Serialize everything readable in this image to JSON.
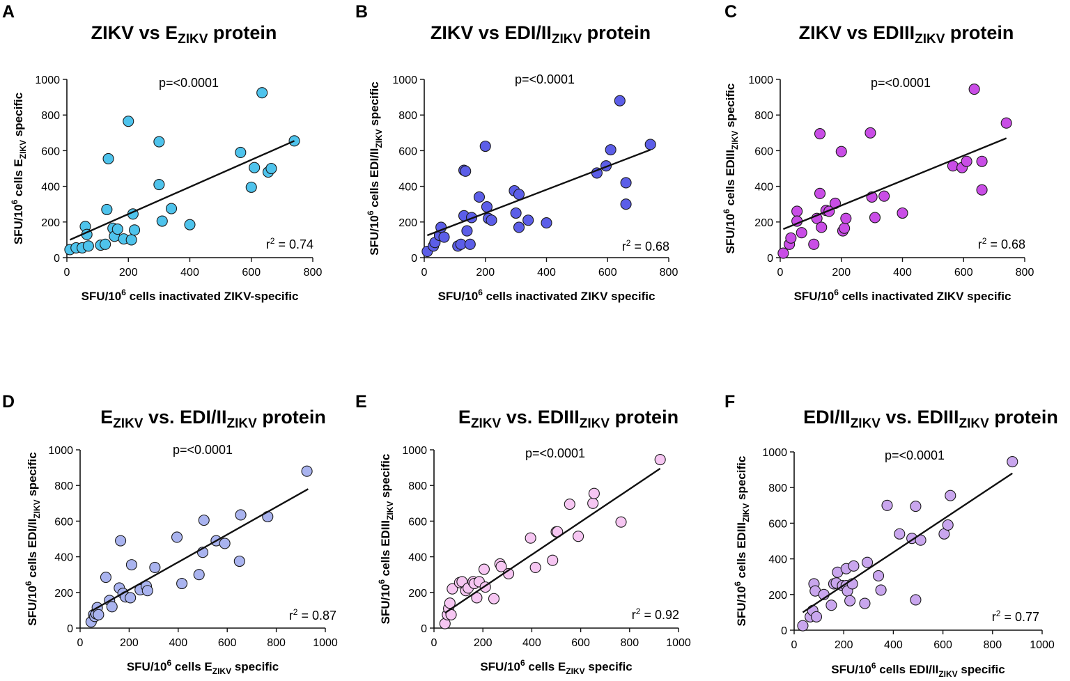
{
  "colors": {
    "text": "#111111",
    "axis": "#111111",
    "regression": "#111111",
    "marker_edge": "#1a1a1a"
  },
  "chart_data": [
    {
      "panel": "A",
      "type": "scatter",
      "title": "ZIKV vs E",
      "title_sub": "ZIKV",
      "title_end": " protein",
      "ylabel_pre": "SFU/10",
      "ylabel_sup": "6",
      "ylabel_mid": " cells E",
      "ylabel_sub": "ZIKV",
      "ylabel_end": " specific",
      "xlabel_pre": "SFU/10",
      "xlabel_sup": "6",
      "xlabel_mid": " cells inactivated ZIKV-specific",
      "xlabel_sub": "",
      "xlabel_end": "",
      "xlim": [
        0,
        800
      ],
      "ylim": [
        0,
        1000
      ],
      "xticks": [
        0,
        200,
        400,
        600,
        800
      ],
      "yticks": [
        0,
        200,
        400,
        600,
        800,
        1000
      ],
      "pvalue": "p=<0.0001",
      "r2_pre": "r",
      "r2_sup": "2",
      "r2_post": " = 0.74",
      "color": "#4ec3ec",
      "line": [
        [
          10,
          100
        ],
        [
          740,
          655
        ]
      ],
      "x": [
        10,
        30,
        50,
        60,
        65,
        70,
        110,
        125,
        130,
        135,
        150,
        155,
        165,
        185,
        200,
        210,
        215,
        220,
        300,
        300,
        310,
        340,
        400,
        565,
        600,
        610,
        655,
        665,
        635,
        740
      ],
      "y": [
        45,
        55,
        55,
        175,
        130,
        65,
        70,
        75,
        270,
        555,
        165,
        120,
        160,
        105,
        765,
        100,
        245,
        155,
        650,
        410,
        205,
        275,
        185,
        590,
        395,
        505,
        480,
        500,
        925,
        655
      ]
    },
    {
      "panel": "B",
      "type": "scatter",
      "title": "ZIKV vs EDI/II",
      "title_sub": "ZIKV",
      "title_end": " protein",
      "ylabel_pre": "SFU/10",
      "ylabel_sup": "6",
      "ylabel_mid": " cells EDI/II",
      "ylabel_sub": "ZIKV",
      "ylabel_end": " specific",
      "xlabel_pre": "SFU/10",
      "xlabel_sup": "6",
      "xlabel_mid": " cells inactivated ZIKV specific",
      "xlabel_sub": "",
      "xlabel_end": "",
      "xlim": [
        0,
        800
      ],
      "ylim": [
        0,
        1000
      ],
      "xticks": [
        0,
        200,
        400,
        600,
        800
      ],
      "yticks": [
        0,
        200,
        400,
        600,
        800,
        1000
      ],
      "pvalue": "p=<0.0001",
      "r2_pre": "r",
      "r2_sup": "2",
      "r2_post": " = 0.68",
      "color": "#5c5ee8",
      "line": [
        [
          10,
          125
        ],
        [
          740,
          605
        ]
      ],
      "x": [
        10,
        30,
        35,
        50,
        55,
        65,
        110,
        120,
        130,
        130,
        135,
        140,
        150,
        155,
        180,
        200,
        205,
        210,
        220,
        295,
        300,
        310,
        310,
        340,
        400,
        565,
        595,
        610,
        640,
        660,
        660,
        740
      ],
      "y": [
        35,
        65,
        85,
        125,
        170,
        115,
        65,
        75,
        235,
        490,
        485,
        150,
        75,
        225,
        340,
        625,
        285,
        220,
        210,
        375,
        250,
        355,
        170,
        210,
        195,
        475,
        515,
        605,
        880,
        300,
        420,
        635
      ]
    },
    {
      "panel": "C",
      "type": "scatter",
      "title": "ZIKV vs EDIII",
      "title_sub": "ZIKV",
      "title_end": " protein",
      "ylabel_pre": "SFU/10",
      "ylabel_sup": "6",
      "ylabel_mid": " cells EDIII",
      "ylabel_sub": "ZIKV",
      "ylabel_end": " specific",
      "xlabel_pre": "SFU/10",
      "xlabel_sup": "6",
      "xlabel_mid": " cells inactivated ZIKV specific",
      "xlabel_sub": "",
      "xlabel_end": "",
      "xlim": [
        0,
        800
      ],
      "ylim": [
        0,
        1000
      ],
      "xticks": [
        0,
        200,
        400,
        600,
        800
      ],
      "yticks": [
        0,
        200,
        400,
        600,
        800,
        1000
      ],
      "pvalue": "p=<0.0001",
      "r2_pre": "r",
      "r2_sup": "2",
      "r2_post": " = 0.68",
      "color": "#c94de6",
      "line": [
        [
          10,
          160
        ],
        [
          740,
          670
        ]
      ],
      "x": [
        10,
        30,
        35,
        55,
        55,
        70,
        110,
        120,
        130,
        130,
        135,
        150,
        160,
        180,
        200,
        205,
        210,
        215,
        295,
        300,
        310,
        340,
        400,
        565,
        595,
        610,
        635,
        660,
        660,
        740
      ],
      "y": [
        25,
        75,
        110,
        260,
        205,
        140,
        75,
        220,
        360,
        695,
        170,
        265,
        260,
        305,
        595,
        150,
        165,
        220,
        700,
        340,
        225,
        345,
        250,
        515,
        505,
        540,
        945,
        380,
        540,
        755
      ]
    },
    {
      "panel": "D",
      "type": "scatter",
      "title": "E",
      "title_sub": "ZIKV",
      "title_end": " vs. EDI/II",
      "title_sub2": "ZIKV",
      "title_end2": " protein",
      "ylabel_pre": "SFU/10",
      "ylabel_sup": "6",
      "ylabel_mid": " cells EDI/II",
      "ylabel_sub": "ZIKV",
      "ylabel_end": " specific",
      "xlabel_pre": "SFU/10",
      "xlabel_sup": "6",
      "xlabel_mid": " cells E",
      "xlabel_sub": "ZIKV",
      "xlabel_end": "  specific",
      "xlim": [
        0,
        1000
      ],
      "ylim": [
        0,
        1000
      ],
      "xticks": [
        0,
        200,
        400,
        600,
        800,
        1000
      ],
      "yticks": [
        0,
        200,
        400,
        600,
        800,
        1000
      ],
      "pvalue": "p=<0.0001",
      "r2_pre": "r",
      "r2_sup": "2",
      "r2_post": " = 0.87",
      "color": "#a9b3ef",
      "line": [
        [
          45,
          95
        ],
        [
          930,
          780
        ]
      ],
      "x": [
        45,
        55,
        60,
        65,
        70,
        75,
        105,
        120,
        130,
        160,
        165,
        175,
        185,
        205,
        210,
        245,
        270,
        275,
        305,
        395,
        415,
        485,
        500,
        505,
        555,
        590,
        650,
        655,
        765,
        925
      ],
      "y": [
        35,
        75,
        65,
        80,
        115,
        75,
        285,
        155,
        120,
        225,
        490,
        195,
        175,
        170,
        355,
        215,
        235,
        210,
        340,
        510,
        250,
        300,
        425,
        605,
        490,
        475,
        375,
        635,
        625,
        880
      ]
    },
    {
      "panel": "E",
      "type": "scatter",
      "title": "E",
      "title_sub": "ZIKV",
      "title_end": " vs. EDIII",
      "title_sub2": "ZIKV",
      "title_end2": " protein",
      "ylabel_pre": "SFU/10",
      "ylabel_sup": "6",
      "ylabel_mid": " cells EDIII",
      "ylabel_sub": "ZIKV",
      "ylabel_end": " specific",
      "xlabel_pre": "SFU/10",
      "xlabel_sup": "6",
      "xlabel_mid": " cells E",
      "xlabel_sub": "ZIKV",
      "xlabel_end": "  specific",
      "xlim": [
        0,
        1000
      ],
      "ylim": [
        0,
        1000
      ],
      "xticks": [
        0,
        200,
        400,
        600,
        800,
        1000
      ],
      "yticks": [
        0,
        200,
        400,
        600,
        800,
        1000
      ],
      "pvalue": "p=<0.0001",
      "r2_pre": "r",
      "r2_sup": "2",
      "r2_post": " = 0.92",
      "color": "#f6c6f2",
      "line": [
        [
          45,
          85
        ],
        [
          925,
          895
        ]
      ],
      "x": [
        45,
        55,
        60,
        65,
        70,
        75,
        105,
        115,
        130,
        140,
        160,
        165,
        175,
        185,
        205,
        210,
        245,
        270,
        275,
        305,
        395,
        415,
        485,
        500,
        505,
        555,
        590,
        650,
        655,
        765,
        925
      ],
      "y": [
        25,
        75,
        110,
        140,
        75,
        220,
        255,
        260,
        210,
        225,
        260,
        250,
        170,
        260,
        330,
        230,
        165,
        360,
        345,
        305,
        505,
        340,
        380,
        540,
        540,
        695,
        515,
        700,
        755,
        595,
        945
      ]
    },
    {
      "panel": "F",
      "type": "scatter",
      "title": "EDI/II",
      "title_sub": "ZIKV",
      "title_end": " vs. EDIII",
      "title_sub2": "ZIKV",
      "title_end2": " protein",
      "ylabel_pre": "SFU/10",
      "ylabel_sup": "6",
      "ylabel_mid": " cells EDIII",
      "ylabel_sub": "ZIKV",
      "ylabel_end": " specific",
      "xlabel_pre": "SFU/10",
      "xlabel_sup": "6",
      "xlabel_mid": " cells EDI/II",
      "xlabel_sub": "ZIKV",
      "xlabel_end": "  specific",
      "xlim": [
        0,
        1000
      ],
      "ylim": [
        0,
        1000
      ],
      "xticks": [
        0,
        200,
        400,
        600,
        800,
        1000
      ],
      "yticks": [
        0,
        200,
        400,
        600,
        800,
        1000
      ],
      "pvalue": "p=<0.0001",
      "r2_pre": "r",
      "r2_sup": "2",
      "r2_post": " = 0.77",
      "color": "#c9a6ee",
      "line": [
        [
          35,
          100
        ],
        [
          880,
          880
        ]
      ],
      "x": [
        35,
        65,
        75,
        80,
        85,
        90,
        120,
        150,
        160,
        170,
        175,
        195,
        210,
        210,
        215,
        225,
        235,
        240,
        285,
        295,
        340,
        350,
        375,
        425,
        475,
        490,
        490,
        510,
        605,
        620,
        630,
        880
      ],
      "y": [
        25,
        75,
        110,
        260,
        220,
        75,
        200,
        140,
        260,
        265,
        325,
        250,
        250,
        345,
        220,
        165,
        260,
        360,
        150,
        380,
        305,
        225,
        700,
        540,
        515,
        695,
        170,
        505,
        540,
        590,
        755,
        945
      ]
    }
  ]
}
